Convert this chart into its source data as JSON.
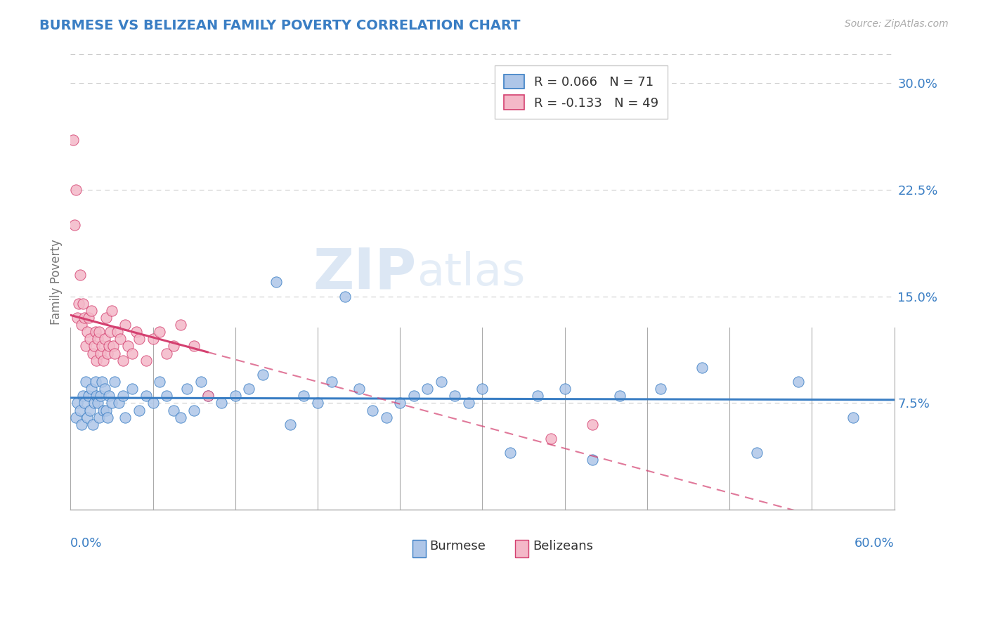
{
  "title": "BURMESE VS BELIZEAN FAMILY POVERTY CORRELATION CHART",
  "source_text": "Source: ZipAtlas.com",
  "ylabel": "Family Poverty",
  "x_min": 0.0,
  "x_max": 60.0,
  "y_min": 0.0,
  "y_max": 32.0,
  "y_ticks": [
    7.5,
    15.0,
    22.5,
    30.0
  ],
  "burmese_color": "#aec6e8",
  "belizean_color": "#f4b8c8",
  "burmese_line_color": "#3a7ec4",
  "belizean_line_color": "#d44070",
  "R_burmese": 0.066,
  "N_burmese": 71,
  "R_belizean": -0.133,
  "N_belizean": 49,
  "burmese_x": [
    0.4,
    0.5,
    0.7,
    0.8,
    0.9,
    1.0,
    1.1,
    1.2,
    1.3,
    1.4,
    1.5,
    1.6,
    1.7,
    1.8,
    1.9,
    2.0,
    2.1,
    2.2,
    2.3,
    2.4,
    2.5,
    2.6,
    2.7,
    2.8,
    3.0,
    3.2,
    3.5,
    3.8,
    4.0,
    4.5,
    5.0,
    5.5,
    6.0,
    6.5,
    7.0,
    7.5,
    8.0,
    8.5,
    9.0,
    9.5,
    10.0,
    11.0,
    12.0,
    13.0,
    14.0,
    15.0,
    16.0,
    17.0,
    18.0,
    19.0,
    20.0,
    21.0,
    22.0,
    23.0,
    24.0,
    25.0,
    26.0,
    27.0,
    28.0,
    29.0,
    30.0,
    32.0,
    34.0,
    36.0,
    38.0,
    40.0,
    43.0,
    46.0,
    50.0,
    53.0,
    57.0
  ],
  "burmese_y": [
    6.5,
    7.5,
    7.0,
    6.0,
    8.0,
    7.5,
    9.0,
    6.5,
    8.0,
    7.0,
    8.5,
    6.0,
    7.5,
    9.0,
    8.0,
    7.5,
    6.5,
    8.0,
    9.0,
    7.0,
    8.5,
    7.0,
    6.5,
    8.0,
    7.5,
    9.0,
    7.5,
    8.0,
    6.5,
    8.5,
    7.0,
    8.0,
    7.5,
    9.0,
    8.0,
    7.0,
    6.5,
    8.5,
    7.0,
    9.0,
    8.0,
    7.5,
    8.0,
    8.5,
    9.5,
    16.0,
    6.0,
    8.0,
    7.5,
    9.0,
    15.0,
    8.5,
    7.0,
    6.5,
    7.5,
    8.0,
    8.5,
    9.0,
    8.0,
    7.5,
    8.5,
    4.0,
    8.0,
    8.5,
    3.5,
    8.0,
    8.5,
    10.0,
    4.0,
    9.0,
    6.5
  ],
  "belizean_x": [
    0.2,
    0.3,
    0.4,
    0.5,
    0.6,
    0.7,
    0.8,
    0.9,
    1.0,
    1.1,
    1.2,
    1.3,
    1.4,
    1.5,
    1.6,
    1.7,
    1.8,
    1.9,
    2.0,
    2.1,
    2.2,
    2.3,
    2.4,
    2.5,
    2.6,
    2.7,
    2.8,
    2.9,
    3.0,
    3.1,
    3.2,
    3.4,
    3.6,
    3.8,
    4.0,
    4.2,
    4.5,
    4.8,
    5.0,
    5.5,
    6.0,
    6.5,
    7.0,
    7.5,
    8.0,
    9.0,
    10.0,
    35.0,
    38.0
  ],
  "belizean_y": [
    26.0,
    20.0,
    22.5,
    13.5,
    14.5,
    16.5,
    13.0,
    14.5,
    13.5,
    11.5,
    12.5,
    13.5,
    12.0,
    14.0,
    11.0,
    11.5,
    12.5,
    10.5,
    12.0,
    12.5,
    11.0,
    11.5,
    10.5,
    12.0,
    13.5,
    11.0,
    11.5,
    12.5,
    14.0,
    11.5,
    11.0,
    12.5,
    12.0,
    10.5,
    13.0,
    11.5,
    11.0,
    12.5,
    12.0,
    10.5,
    12.0,
    12.5,
    11.0,
    11.5,
    13.0,
    11.5,
    8.0,
    5.0,
    6.0
  ],
  "watermark_zip": "ZIP",
  "watermark_atlas": "atlas",
  "background_color": "#ffffff",
  "grid_color": "#cccccc",
  "title_color": "#3a7ec4",
  "axis_label_color": "#3a7ec4",
  "ylabel_color": "#777777"
}
